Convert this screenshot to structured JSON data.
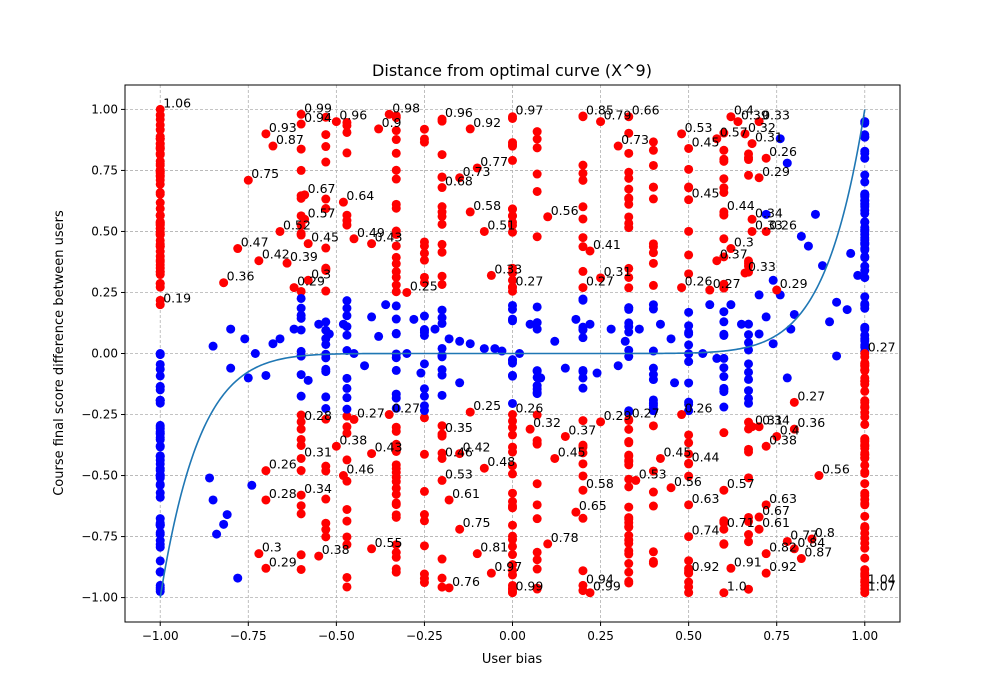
{
  "chart_data": {
    "type": "scatter",
    "title": "Distance from optimal curve (X^9)",
    "xlabel": "User bias",
    "ylabel": "Course final score difference between users",
    "xlim": [
      -1.1,
      1.1
    ],
    "ylim": [
      -1.1,
      1.1
    ],
    "x_ticks": [
      "−1.00",
      "−0.75",
      "−0.50",
      "−0.25",
      "0.00",
      "0.25",
      "0.50",
      "0.75",
      "1.00"
    ],
    "y_ticks": [
      "−1.00",
      "−0.75",
      "−0.50",
      "−0.25",
      "0.00",
      "0.25",
      "0.50",
      "0.75",
      "1.00"
    ],
    "grid": true,
    "curve": {
      "function": "y = x^9",
      "color": "#1f77b4"
    },
    "colors": {
      "outlier": "#ff0000",
      "inlier": "#0000ff",
      "curve": "#1f77b4"
    },
    "labeled_points": [
      {
        "x": -1.0,
        "y": 1.0,
        "label": "1.06"
      },
      {
        "x": -1.0,
        "y": 0.2,
        "label": "0.19"
      },
      {
        "x": -0.82,
        "y": 0.29,
        "label": "0.36"
      },
      {
        "x": -0.78,
        "y": 0.43,
        "label": "0.47"
      },
      {
        "x": -0.75,
        "y": 0.71,
        "label": "0.75"
      },
      {
        "x": -0.72,
        "y": 0.38,
        "label": "0.42"
      },
      {
        "x": -0.7,
        "y": 0.9,
        "label": "0.93"
      },
      {
        "x": -0.68,
        "y": 0.85,
        "label": "0.87"
      },
      {
        "x": -0.66,
        "y": 0.5,
        "label": "0.52"
      },
      {
        "x": -0.64,
        "y": 0.37,
        "label": "0.39"
      },
      {
        "x": -0.62,
        "y": 0.27,
        "label": "0.29"
      },
      {
        "x": -0.6,
        "y": 0.94,
        "label": "0.94"
      },
      {
        "x": -0.59,
        "y": 0.55,
        "label": "0.57"
      },
      {
        "x": -0.58,
        "y": 0.3,
        "label": "0.3"
      },
      {
        "x": -0.58,
        "y": 0.45,
        "label": "0.45"
      },
      {
        "x": -0.59,
        "y": 0.65,
        "label": "0.67"
      },
      {
        "x": -0.6,
        "y": 0.98,
        "label": "0.99"
      },
      {
        "x": -0.5,
        "y": 0.95,
        "label": "0.96"
      },
      {
        "x": -0.48,
        "y": 0.62,
        "label": "0.64"
      },
      {
        "x": -0.45,
        "y": 0.47,
        "label": "0.49"
      },
      {
        "x": -0.4,
        "y": 0.45,
        "label": "0.43"
      },
      {
        "x": -0.38,
        "y": 0.92,
        "label": "0.9"
      },
      {
        "x": -0.35,
        "y": 0.98,
        "label": "0.98"
      },
      {
        "x": -0.2,
        "y": 0.96,
        "label": "0.96"
      },
      {
        "x": -0.2,
        "y": 0.68,
        "label": "0.68"
      },
      {
        "x": -0.15,
        "y": 0.72,
        "label": "0.73"
      },
      {
        "x": -0.12,
        "y": 0.92,
        "label": "0.92"
      },
      {
        "x": -0.12,
        "y": 0.58,
        "label": "0.58"
      },
      {
        "x": -0.1,
        "y": 0.76,
        "label": "0.77"
      },
      {
        "x": -0.08,
        "y": 0.5,
        "label": "0.51"
      },
      {
        "x": -0.06,
        "y": 0.32,
        "label": "0.33"
      },
      {
        "x": 0.0,
        "y": 0.97,
        "label": "0.97"
      },
      {
        "x": 0.1,
        "y": 0.56,
        "label": "0.56"
      },
      {
        "x": 0.2,
        "y": 0.97,
        "label": "0.85"
      },
      {
        "x": 0.22,
        "y": 0.42,
        "label": "0.41"
      },
      {
        "x": 0.25,
        "y": 0.95,
        "label": "0.79"
      },
      {
        "x": 0.3,
        "y": 0.85,
        "label": "0.73"
      },
      {
        "x": 0.33,
        "y": 0.97,
        "label": "0.66"
      },
      {
        "x": 0.48,
        "y": 0.9,
        "label": "0.53"
      },
      {
        "x": 0.58,
        "y": 0.88,
        "label": "0.57"
      },
      {
        "x": 0.6,
        "y": 0.58,
        "label": "0.44"
      },
      {
        "x": 0.62,
        "y": 0.97,
        "label": "0.4"
      },
      {
        "x": 0.64,
        "y": 0.95,
        "label": "0.39"
      },
      {
        "x": 0.66,
        "y": 0.9,
        "label": "0.32"
      },
      {
        "x": 0.68,
        "y": 0.86,
        "label": "0.31"
      },
      {
        "x": 0.7,
        "y": 0.95,
        "label": "0.33"
      },
      {
        "x": 0.72,
        "y": 0.8,
        "label": "0.26"
      },
      {
        "x": 0.7,
        "y": 0.72,
        "label": "0.29"
      },
      {
        "x": 0.68,
        "y": 0.55,
        "label": "0.34"
      },
      {
        "x": 0.68,
        "y": 0.5,
        "label": "0.33"
      },
      {
        "x": 0.72,
        "y": 0.5,
        "label": "0.26"
      },
      {
        "x": 0.58,
        "y": 0.38,
        "label": "0.37"
      },
      {
        "x": 0.62,
        "y": 0.43,
        "label": "0.3"
      },
      {
        "x": 0.66,
        "y": 0.33,
        "label": "0.33"
      },
      {
        "x": 0.56,
        "y": 0.26,
        "label": "0.27"
      },
      {
        "x": 0.48,
        "y": 0.27,
        "label": "0.26"
      },
      {
        "x": -0.3,
        "y": 0.25,
        "label": "0.25"
      },
      {
        "x": 0.0,
        "y": 0.27,
        "label": "0.27"
      },
      {
        "x": 0.2,
        "y": 0.27,
        "label": "0.27"
      },
      {
        "x": 0.25,
        "y": 0.31,
        "label": "0.31"
      },
      {
        "x": -0.6,
        "y": -0.28,
        "label": "0.28"
      },
      {
        "x": -0.6,
        "y": -0.43,
        "label": "0.31"
      },
      {
        "x": -0.7,
        "y": -0.48,
        "label": "0.26"
      },
      {
        "x": -0.7,
        "y": -0.6,
        "label": "0.28"
      },
      {
        "x": -0.6,
        "y": -0.58,
        "label": "0.34"
      },
      {
        "x": -0.72,
        "y": -0.82,
        "label": "0.3"
      },
      {
        "x": -0.7,
        "y": -0.88,
        "label": "0.29"
      },
      {
        "x": -0.55,
        "y": -0.83,
        "label": "0.38"
      },
      {
        "x": -0.5,
        "y": -0.38,
        "label": "0.38"
      },
      {
        "x": -0.48,
        "y": -0.5,
        "label": "0.46"
      },
      {
        "x": -0.4,
        "y": -0.41,
        "label": "0.43"
      },
      {
        "x": -0.4,
        "y": -0.8,
        "label": "0.55"
      },
      {
        "x": -0.45,
        "y": -0.27,
        "label": "0.27"
      },
      {
        "x": -0.35,
        "y": -0.25,
        "label": "0.27"
      },
      {
        "x": -0.2,
        "y": -0.33,
        "label": "0.35"
      },
      {
        "x": -0.2,
        "y": -0.43,
        "label": "0.46"
      },
      {
        "x": -0.15,
        "y": -0.41,
        "label": "0.42"
      },
      {
        "x": -0.08,
        "y": -0.47,
        "label": "0.48"
      },
      {
        "x": -0.12,
        "y": -0.24,
        "label": "0.25"
      },
      {
        "x": -0.2,
        "y": -0.52,
        "label": "0.53"
      },
      {
        "x": -0.18,
        "y": -0.6,
        "label": "0.61"
      },
      {
        "x": -0.15,
        "y": -0.72,
        "label": "0.75"
      },
      {
        "x": -0.1,
        "y": -0.82,
        "label": "0.81"
      },
      {
        "x": -0.18,
        "y": -0.96,
        "label": "0.76"
      },
      {
        "x": -0.06,
        "y": -0.9,
        "label": "0.97"
      },
      {
        "x": 0.0,
        "y": -0.25,
        "label": "0.26"
      },
      {
        "x": 0.05,
        "y": -0.31,
        "label": "0.32"
      },
      {
        "x": 0.12,
        "y": -0.43,
        "label": "0.45"
      },
      {
        "x": 0.15,
        "y": -0.34,
        "label": "0.37"
      },
      {
        "x": 0.2,
        "y": -0.56,
        "label": "0.58"
      },
      {
        "x": 0.18,
        "y": -0.65,
        "label": "0.65"
      },
      {
        "x": 0.1,
        "y": -0.78,
        "label": "0.78"
      },
      {
        "x": 0.2,
        "y": -0.95,
        "label": "0.94"
      },
      {
        "x": 0.22,
        "y": -0.98,
        "label": "0.99"
      },
      {
        "x": 0.0,
        "y": -0.98,
        "label": "0.99"
      },
      {
        "x": 0.25,
        "y": -0.28,
        "label": "0.29"
      },
      {
        "x": 0.33,
        "y": -0.27,
        "label": "0.27"
      },
      {
        "x": 0.48,
        "y": -0.25,
        "label": "0.26"
      },
      {
        "x": 0.5,
        "y": -0.45,
        "label": "0.44"
      },
      {
        "x": 0.45,
        "y": -0.55,
        "label": "0.56"
      },
      {
        "x": 0.5,
        "y": -0.62,
        "label": "0.63"
      },
      {
        "x": 0.5,
        "y": -0.75,
        "label": "0.74"
      },
      {
        "x": 0.5,
        "y": -0.9,
        "label": "0.92"
      },
      {
        "x": 0.6,
        "y": -0.56,
        "label": "0.57"
      },
      {
        "x": 0.6,
        "y": -0.72,
        "label": "0.71"
      },
      {
        "x": 0.62,
        "y": -0.88,
        "label": "0.91"
      },
      {
        "x": 0.6,
        "y": -0.98,
        "label": "1.0"
      },
      {
        "x": 0.7,
        "y": -0.3,
        "label": "0.34"
      },
      {
        "x": 0.72,
        "y": -0.38,
        "label": "0.38"
      },
      {
        "x": 0.68,
        "y": -0.3,
        "label": "0.31"
      },
      {
        "x": 0.75,
        "y": -0.34,
        "label": "0.4"
      },
      {
        "x": 0.8,
        "y": -0.2,
        "label": "0.27"
      },
      {
        "x": 0.8,
        "y": -0.31,
        "label": "0.36"
      },
      {
        "x": 0.87,
        "y": -0.5,
        "label": "0.56"
      },
      {
        "x": 0.72,
        "y": -0.62,
        "label": "0.63"
      },
      {
        "x": 0.7,
        "y": -0.67,
        "label": "0.67"
      },
      {
        "x": 0.7,
        "y": -0.72,
        "label": "0.61"
      },
      {
        "x": 0.72,
        "y": -0.82,
        "label": "0.82"
      },
      {
        "x": 0.72,
        "y": -0.9,
        "label": "0.92"
      },
      {
        "x": 0.78,
        "y": -0.77,
        "label": "0.77"
      },
      {
        "x": 0.8,
        "y": -0.8,
        "label": "0.84"
      },
      {
        "x": 0.82,
        "y": -0.84,
        "label": "0.87"
      },
      {
        "x": 0.85,
        "y": -0.76,
        "label": "0.8"
      },
      {
        "x": 1.0,
        "y": 0.0,
        "label": "0.27"
      },
      {
        "x": 1.0,
        "y": -0.95,
        "label": "1.04"
      },
      {
        "x": 1.0,
        "y": -0.98,
        "label": "1.07"
      },
      {
        "x": 0.75,
        "y": 0.26,
        "label": "0.29"
      },
      {
        "x": 0.5,
        "y": 0.84,
        "label": "0.45"
      },
      {
        "x": 0.5,
        "y": 0.63,
        "label": "0.45"
      },
      {
        "x": 0.35,
        "y": -0.52,
        "label": "0.53"
      },
      {
        "x": 0.42,
        "y": -0.43,
        "label": "0.45"
      }
    ],
    "outlier_columns": [
      -1.0,
      -0.6,
      -0.53,
      -0.47,
      -0.33,
      -0.25,
      -0.2,
      0.0,
      0.07,
      0.2,
      0.33,
      0.4,
      0.5,
      0.6,
      0.67,
      1.0
    ],
    "inlier_points": [
      [
        -1.0,
        -0.95
      ],
      [
        -1.0,
        -0.5
      ],
      [
        -1.0,
        0.0
      ],
      [
        -0.86,
        -0.51
      ],
      [
        -0.85,
        -0.6
      ],
      [
        -0.84,
        -0.74
      ],
      [
        -0.82,
        -0.7
      ],
      [
        -0.81,
        -0.66
      ],
      [
        -0.78,
        -0.92
      ],
      [
        -0.74,
        -0.54
      ],
      [
        -0.8,
        -0.06
      ],
      [
        -0.75,
        -0.1
      ],
      [
        -0.68,
        0.04
      ],
      [
        -0.66,
        0.06
      ],
      [
        -0.85,
        0.03
      ],
      [
        -0.8,
        0.1
      ],
      [
        -0.76,
        0.06
      ],
      [
        -0.73,
        0.0
      ],
      [
        -0.7,
        -0.09
      ],
      [
        -0.62,
        0.1
      ],
      [
        -0.58,
        -0.11
      ],
      [
        -0.55,
        0.12
      ],
      [
        -0.52,
        0.08
      ],
      [
        -0.48,
        0.12
      ],
      [
        -0.45,
        0.0
      ],
      [
        -0.42,
        -0.05
      ],
      [
        -0.4,
        0.15
      ],
      [
        -0.38,
        0.07
      ],
      [
        -0.36,
        0.2
      ],
      [
        -0.3,
        0.0
      ],
      [
        -0.28,
        0.14
      ],
      [
        -0.26,
        -0.08
      ],
      [
        -0.22,
        0.1
      ],
      [
        -0.18,
        0.06
      ],
      [
        -0.15,
        -0.12
      ],
      [
        -0.12,
        0.04
      ],
      [
        -0.08,
        0.02
      ],
      [
        -0.05,
        0.02
      ],
      [
        0.02,
        0.0
      ],
      [
        0.05,
        0.12
      ],
      [
        0.08,
        -0.1
      ],
      [
        0.12,
        0.05
      ],
      [
        0.15,
        -0.06
      ],
      [
        0.18,
        0.14
      ],
      [
        0.22,
        0.12
      ],
      [
        0.24,
        -0.08
      ],
      [
        0.28,
        0.1
      ],
      [
        0.3,
        -0.05
      ],
      [
        0.36,
        0.1
      ],
      [
        0.4,
        -0.06
      ],
      [
        0.42,
        0.12
      ],
      [
        0.45,
        0.06
      ],
      [
        0.5,
        0.08
      ],
      [
        0.54,
        0.0
      ],
      [
        0.58,
        -0.02
      ],
      [
        0.6,
        0.13
      ],
      [
        0.62,
        0.2
      ],
      [
        0.65,
        0.12
      ],
      [
        0.7,
        0.08
      ],
      [
        0.72,
        0.15
      ],
      [
        0.74,
        0.04
      ],
      [
        0.76,
        0.24
      ],
      [
        0.78,
        -0.1
      ],
      [
        0.8,
        0.16
      ],
      [
        0.82,
        0.48
      ],
      [
        0.84,
        0.44
      ],
      [
        0.86,
        0.57
      ],
      [
        0.92,
        0.21
      ],
      [
        0.95,
        0.18
      ],
      [
        0.96,
        0.41
      ],
      [
        0.98,
        0.32
      ],
      [
        0.88,
        0.36
      ],
      [
        0.9,
        0.13
      ],
      [
        0.92,
        -0.01
      ],
      [
        1.0,
        0.95
      ],
      [
        1.0,
        0.5
      ],
      [
        1.0,
        0.1
      ],
      [
        -0.15,
        0.05
      ],
      [
        -0.03,
        0.01
      ],
      [
        0.32,
        0.05
      ],
      [
        0.46,
        -0.12
      ],
      [
        0.56,
        0.2
      ],
      [
        0.72,
        0.57
      ],
      [
        0.76,
        0.88
      ],
      [
        0.78,
        0.78
      ],
      [
        0.74,
        0.3
      ],
      [
        0.7,
        0.24
      ],
      [
        0.79,
        0.1
      ]
    ]
  }
}
